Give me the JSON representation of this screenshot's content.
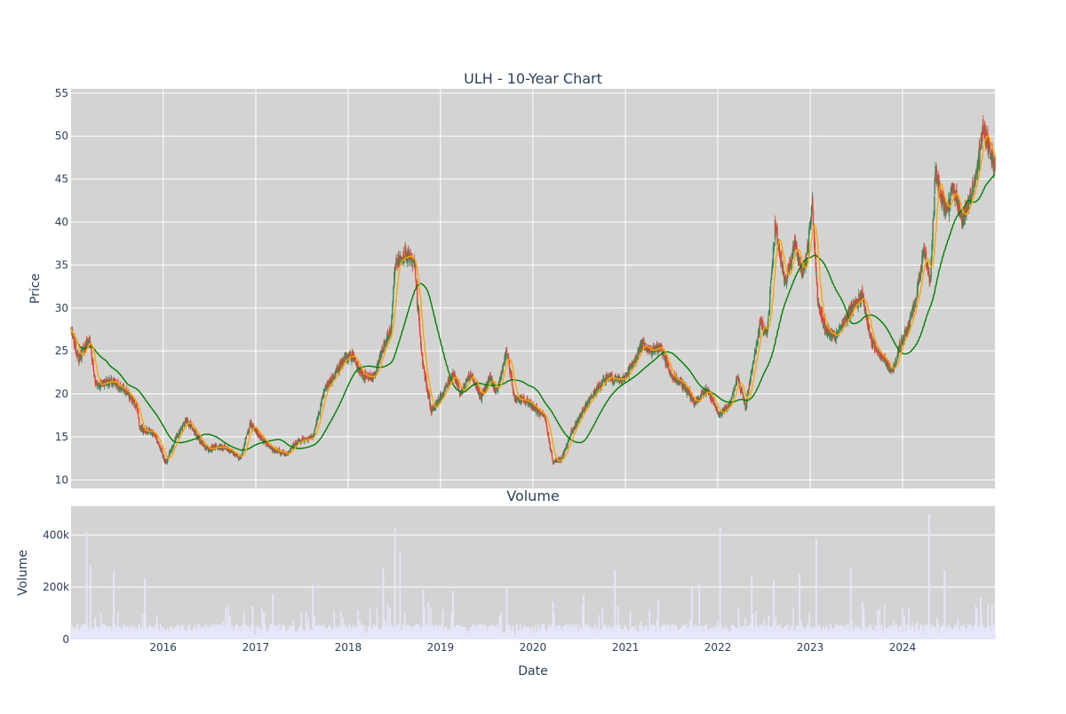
{
  "chart_data": [
    {
      "type": "candlestick",
      "title": "ULH - 10-Year Chart",
      "ylabel": "Price",
      "ylim": [
        9,
        55.5
      ],
      "yticks": [
        10,
        15,
        20,
        25,
        30,
        35,
        40,
        45,
        50,
        55
      ],
      "x_range": [
        "2015-01-02",
        "2024-12-31"
      ],
      "xticks": [
        {
          "date": "2016-01-01",
          "label": "2016"
        },
        {
          "date": "2017-01-01",
          "label": "2017"
        },
        {
          "date": "2018-01-01",
          "label": "2018"
        },
        {
          "date": "2019-01-01",
          "label": "2019"
        },
        {
          "date": "2020-01-01",
          "label": "2020"
        },
        {
          "date": "2021-01-01",
          "label": "2021"
        },
        {
          "date": "2022-01-01",
          "label": "2022"
        },
        {
          "date": "2023-01-01",
          "label": "2023"
        },
        {
          "date": "2024-01-01",
          "label": "2024"
        }
      ],
      "price_path": [
        [
          "2015-01-02",
          27.5
        ],
        [
          "2015-02-01",
          24.0
        ],
        [
          "2015-03-15",
          26.5
        ],
        [
          "2015-04-10",
          21.0
        ],
        [
          "2015-06-01",
          21.5
        ],
        [
          "2015-08-01",
          20.5
        ],
        [
          "2015-09-20",
          18.5
        ],
        [
          "2015-10-01",
          16.0
        ],
        [
          "2015-11-25",
          15.5
        ],
        [
          "2016-01-10",
          12.0
        ],
        [
          "2016-02-15",
          14.5
        ],
        [
          "2016-04-01",
          17.0
        ],
        [
          "2016-05-15",
          15.0
        ],
        [
          "2016-06-25",
          13.5
        ],
        [
          "2016-08-01",
          14.0
        ],
        [
          "2016-09-15",
          13.5
        ],
        [
          "2016-11-01",
          12.5
        ],
        [
          "2016-12-10",
          16.5
        ],
        [
          "2017-01-20",
          15.0
        ],
        [
          "2017-03-10",
          13.5
        ],
        [
          "2017-05-01",
          13.0
        ],
        [
          "2017-06-15",
          14.5
        ],
        [
          "2017-08-15",
          15.0
        ],
        [
          "2017-10-01",
          20.5
        ],
        [
          "2017-12-15",
          24.0
        ],
        [
          "2018-01-20",
          24.5
        ],
        [
          "2018-03-01",
          22.0
        ],
        [
          "2018-04-15",
          22.0
        ],
        [
          "2018-05-15",
          25.0
        ],
        [
          "2018-06-20",
          27.5
        ],
        [
          "2018-07-05",
          35.0
        ],
        [
          "2018-08-15",
          36.5
        ],
        [
          "2018-09-20",
          35.0
        ],
        [
          "2018-10-20",
          24.0
        ],
        [
          "2018-11-25",
          18.0
        ],
        [
          "2019-01-10",
          20.0
        ],
        [
          "2019-02-20",
          22.5
        ],
        [
          "2019-03-20",
          20.0
        ],
        [
          "2019-05-01",
          22.5
        ],
        [
          "2019-06-10",
          19.5
        ],
        [
          "2019-07-15",
          22.0
        ],
        [
          "2019-08-10",
          20.0
        ],
        [
          "2019-09-20",
          25.0
        ],
        [
          "2019-10-20",
          19.5
        ],
        [
          "2019-12-20",
          19.0
        ],
        [
          "2020-02-20",
          17.0
        ],
        [
          "2020-03-20",
          12.0
        ],
        [
          "2020-04-25",
          12.5
        ],
        [
          "2020-06-01",
          15.5
        ],
        [
          "2020-07-15",
          18.0
        ],
        [
          "2020-09-10",
          20.5
        ],
        [
          "2020-10-20",
          22.0
        ],
        [
          "2020-12-20",
          21.5
        ],
        [
          "2021-02-01",
          23.5
        ],
        [
          "2021-03-10",
          26.0
        ],
        [
          "2021-04-10",
          25.0
        ],
        [
          "2021-05-20",
          25.5
        ],
        [
          "2021-07-01",
          22.0
        ],
        [
          "2021-08-20",
          21.0
        ],
        [
          "2021-10-01",
          19.0
        ],
        [
          "2021-11-20",
          20.5
        ],
        [
          "2022-01-05",
          17.5
        ],
        [
          "2022-02-20",
          19.0
        ],
        [
          "2022-03-20",
          22.0
        ],
        [
          "2022-04-20",
          18.5
        ],
        [
          "2022-05-20",
          23.5
        ],
        [
          "2022-06-20",
          28.5
        ],
        [
          "2022-07-15",
          27.0
        ],
        [
          "2022-08-15",
          39.5
        ],
        [
          "2022-09-25",
          33.0
        ],
        [
          "2022-11-01",
          37.5
        ],
        [
          "2022-12-01",
          34.0
        ],
        [
          "2022-12-20",
          36.5
        ],
        [
          "2023-01-10",
          42.0
        ],
        [
          "2023-01-30",
          31.0
        ],
        [
          "2023-03-01",
          27.5
        ],
        [
          "2023-04-10",
          26.5
        ],
        [
          "2023-05-15",
          28.5
        ],
        [
          "2023-06-20",
          30.0
        ],
        [
          "2023-07-25",
          31.5
        ],
        [
          "2023-09-01",
          26.0
        ],
        [
          "2023-10-10",
          24.5
        ],
        [
          "2023-11-20",
          22.5
        ],
        [
          "2023-12-20",
          25.5
        ],
        [
          "2024-01-20",
          27.5
        ],
        [
          "2024-02-20",
          30.5
        ],
        [
          "2024-03-25",
          37.0
        ],
        [
          "2024-04-20",
          33.0
        ],
        [
          "2024-05-10",
          46.0
        ],
        [
          "2024-06-01",
          43.0
        ],
        [
          "2024-06-25",
          41.0
        ],
        [
          "2024-07-20",
          44.5
        ],
        [
          "2024-08-20",
          40.0
        ],
        [
          "2024-09-20",
          42.5
        ],
        [
          "2024-10-20",
          45.0
        ],
        [
          "2024-11-10",
          51.0
        ],
        [
          "2024-12-01",
          49.5
        ],
        [
          "2024-12-31",
          46.5
        ]
      ],
      "series": [
        {
          "name": "",
          "kind": "moving-average-short",
          "color": "#ffa500"
        },
        {
          "name": "",
          "kind": "moving-average-long",
          "color": "#008000"
        }
      ],
      "candle_colors": {
        "up": "#2e8b57",
        "down": "#ef4136"
      },
      "plot_background": "#d3d3d3",
      "grid": true
    },
    {
      "type": "bar",
      "title": "Volume",
      "xlabel": "Date",
      "ylabel": "Volume",
      "ylim": [
        0,
        510000
      ],
      "yticks": [
        {
          "value": 0,
          "label": "0"
        },
        {
          "value": 200000,
          "label": "200k"
        },
        {
          "value": 400000,
          "label": "400k"
        }
      ],
      "bar_color": "#e6e6fa",
      "bar_edge_color": "#ffffff",
      "baseline": 30000,
      "spikes": [
        [
          "2015-03-05",
          410000
        ],
        [
          "2015-03-20",
          280000
        ],
        [
          "2015-06-20",
          260000
        ],
        [
          "2015-10-20",
          235000
        ],
        [
          "2016-09-05",
          120000
        ],
        [
          "2016-12-20",
          125000
        ],
        [
          "2017-03-10",
          175000
        ],
        [
          "2017-08-15",
          210000
        ],
        [
          "2018-05-20",
          270000
        ],
        [
          "2018-07-05",
          430000
        ],
        [
          "2018-07-25",
          330000
        ],
        [
          "2018-10-25",
          190000
        ],
        [
          "2019-02-20",
          185000
        ],
        [
          "2019-09-20",
          195000
        ],
        [
          "2020-03-20",
          145000
        ],
        [
          "2020-07-20",
          170000
        ],
        [
          "2020-11-20",
          265000
        ],
        [
          "2021-05-10",
          155000
        ],
        [
          "2021-09-20",
          200000
        ],
        [
          "2021-10-20",
          210000
        ],
        [
          "2022-01-10",
          430000
        ],
        [
          "2022-05-15",
          245000
        ],
        [
          "2022-08-10",
          225000
        ],
        [
          "2022-11-20",
          250000
        ],
        [
          "2023-01-25",
          385000
        ],
        [
          "2023-06-10",
          275000
        ],
        [
          "2023-08-01",
          115000
        ],
        [
          "2024-04-15",
          480000
        ],
        [
          "2024-06-15",
          265000
        ],
        [
          "2024-11-05",
          160000
        ],
        [
          "2024-12-20",
          130000
        ]
      ],
      "plot_background": "#d3d3d3",
      "grid": true
    }
  ]
}
